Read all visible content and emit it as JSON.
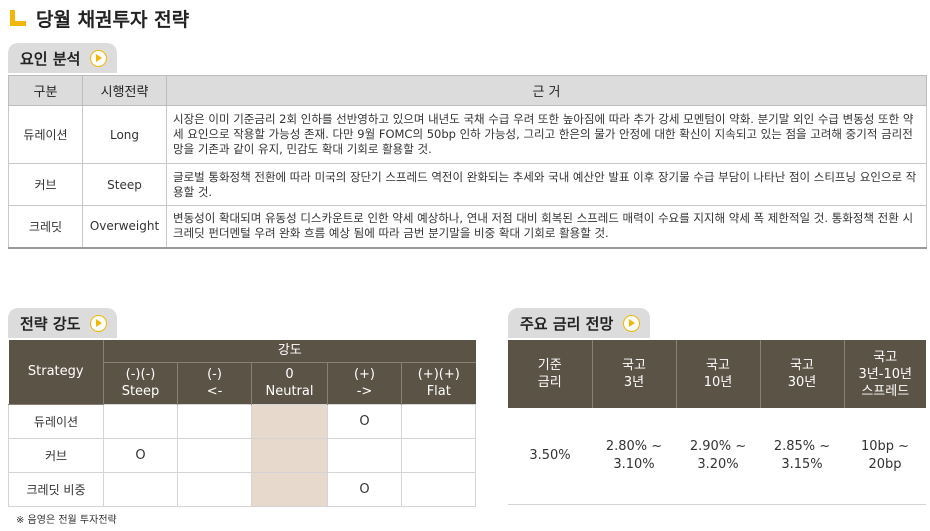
{
  "title": "당월 채권투자 전략",
  "factor_tab": "요인 분석",
  "factor_table": {
    "headers": [
      "구분",
      "시행전략",
      "근 거"
    ],
    "rows": [
      {
        "category": "듀레이션",
        "strategy": "Long",
        "reason": "시장은 이미 기준금리 2회 인하를 선반영하고 있으며 내년도 국채 수급 우려 또한 높아짐에 따라 추가 강세 모멘텀이 약화. 분기말 외인 수급 변동성 또한 약세 요인으로 작용할 가능성 존재. 다만 9월 FOMC의 50bp 인하 가능성, 그리고 한은의 물가 안정에 대한 확신이 지속되고 있는 점을 고려해 중기적 금리전망을 기존과 같이 유지, 민감도 확대 기회로 활용할 것."
      },
      {
        "category": "커브",
        "strategy": "Steep",
        "reason": "글로벌 통화정책 전환에 따라 미국의 장단기 스프레드 역전이 완화되는 추세와 국내 예산안 발표 이후 장기물 수급 부담이 나타난 점이 스티프닝 요인으로 작용할 것."
      },
      {
        "category": "크레딧",
        "strategy": "Overweight",
        "reason": "변동성이 확대되며 유동성 디스카운트로 인한 약세 예상하나, 연내 저점 대비 회복된 스프레드 매력이 수요를 지지해 약세 폭 제한적일 것. 통화정책 전환 시 크레딧 펀더멘털 우려 완화 흐름 예상 됨에 따라 금번 분기말을 비중 확대 기회로 활용할 것."
      }
    ]
  },
  "strength_tab": "전략 강도",
  "strength_table": {
    "strategy_header": "Strategy",
    "group_header": "강도",
    "columns": [
      {
        "top": "(-)(-)",
        "bottom": "Steep"
      },
      {
        "top": "(-)",
        "bottom": "<-"
      },
      {
        "top": "0",
        "bottom": "Neutral"
      },
      {
        "top": "(+)",
        "bottom": "->"
      },
      {
        "top": "(+)(+)",
        "bottom": "Flat"
      }
    ],
    "rows": [
      {
        "label": "듀레이션",
        "marks": [
          "",
          "",
          "",
          "O",
          ""
        ]
      },
      {
        "label": "커브",
        "marks": [
          "O",
          "",
          "",
          "",
          ""
        ]
      },
      {
        "label": "크레딧 비중",
        "marks": [
          "",
          "",
          "",
          "O",
          ""
        ]
      }
    ]
  },
  "rates_tab": "주요 금리 전망",
  "rates_table": {
    "headers": [
      [
        "기준",
        "금리"
      ],
      [
        "국고",
        "3년"
      ],
      [
        "국고",
        "10년"
      ],
      [
        "국고",
        "30년"
      ],
      [
        "국고",
        "3년-10년",
        "스프레드"
      ]
    ],
    "values": [
      [
        "3.50%"
      ],
      [
        "2.80% ~",
        "3.10%"
      ],
      [
        "2.90% ~",
        "3.20%"
      ],
      [
        "2.85% ~",
        "3.15%"
      ],
      [
        "10bp ~",
        "20bp"
      ]
    ]
  },
  "note": "※ 음영은 전월 투자전략",
  "colors": {
    "accent": "#f2b705",
    "header_dark": "#5c5347",
    "header_light": "#dcdcdc",
    "neutral_shade": "#e7dacd"
  }
}
